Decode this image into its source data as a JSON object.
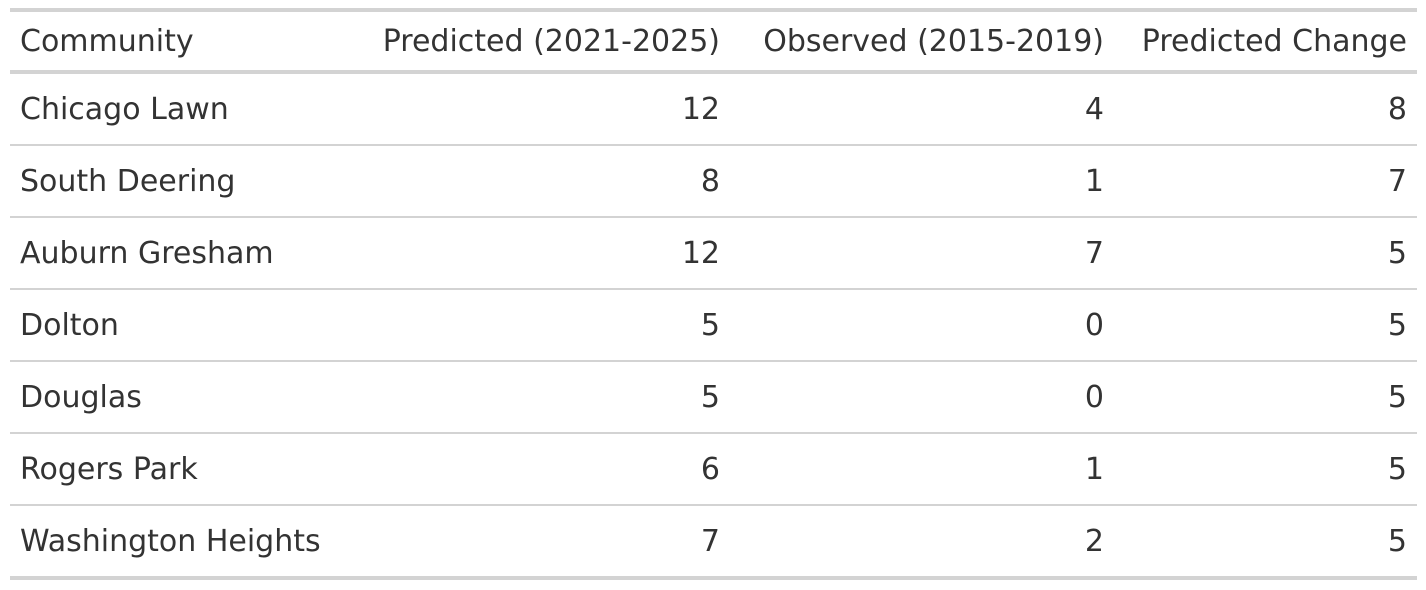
{
  "table": {
    "headers": [
      "Community",
      "Predicted (2021-2025)",
      "Observed (2015-2019)",
      "Predicted Change"
    ],
    "rows": [
      {
        "community": "Chicago Lawn",
        "predicted": "12",
        "observed": "4",
        "change": "8"
      },
      {
        "community": "South Deering",
        "predicted": "8",
        "observed": "1",
        "change": "7"
      },
      {
        "community": "Auburn Gresham",
        "predicted": "12",
        "observed": "7",
        "change": "5"
      },
      {
        "community": "Dolton",
        "predicted": "5",
        "observed": "0",
        "change": "5"
      },
      {
        "community": "Douglas",
        "predicted": "5",
        "observed": "0",
        "change": "5"
      },
      {
        "community": "Rogers Park",
        "predicted": "6",
        "observed": "1",
        "change": "5"
      },
      {
        "community": "Washington Heights",
        "predicted": "7",
        "observed": "2",
        "change": "5"
      }
    ]
  },
  "colors": {
    "text": "#333333",
    "rule": "#d3d3d3",
    "background": "#ffffff"
  }
}
